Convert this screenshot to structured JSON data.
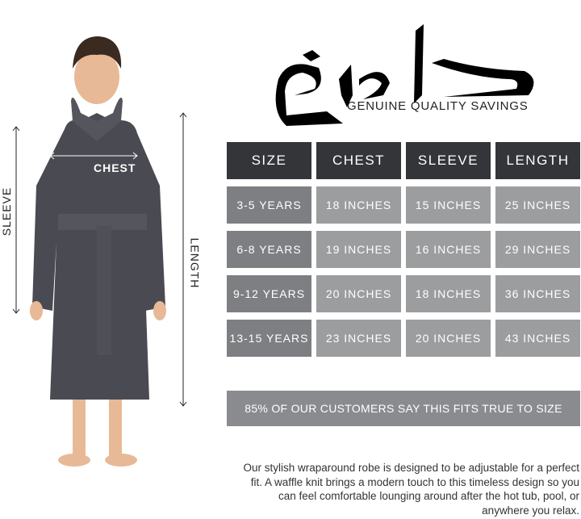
{
  "logo": {
    "script": "دامخ",
    "tagline": "GENUINE QUALITY SAVINGS"
  },
  "measure_labels": {
    "chest": "CHEST",
    "sleeve": "SLEEVE",
    "length": "LENGTH"
  },
  "table": {
    "headers": [
      "SIZE",
      "CHEST",
      "SLEEVE",
      "LENGTH"
    ],
    "rows": [
      [
        "3-5 YEARS",
        "18 INCHES",
        "15 INCHES",
        "25 INCHES"
      ],
      [
        "6-8 YEARS",
        "19 INCHES",
        "16 INCHES",
        "29 INCHES"
      ],
      [
        "9-12 YEARS",
        "20 INCHES",
        "18 INCHES",
        "36 INCHES"
      ],
      [
        "13-15 YEARS",
        "23 INCHES",
        "20 INCHES",
        "43 INCHES"
      ]
    ]
  },
  "banner": "85% OF OUR CUSTOMERS SAY THIS FITS TRUE TO SIZE",
  "description": "Our stylish wraparound robe is designed to be adjustable for a perfect fit. A waffle knit brings a modern touch to this timeless design so you can feel comfortable lounging around after the hot tub, pool, or anywhere you relax.",
  "colors": {
    "header": "#333539",
    "size_cell": "#7e7f82",
    "value_cell": "#9c9d9f",
    "robe": "#4a4a52"
  }
}
